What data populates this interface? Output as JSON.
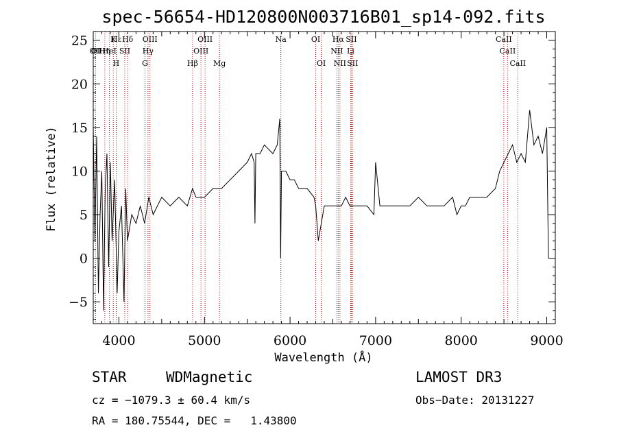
{
  "chart_data": {
    "type": "line",
    "title": "spec-56654-HD120800N003716B01_sp14-092.fits",
    "xlabel": "Wavelength (Å)",
    "ylabel": "Flux (relative)",
    "xlim": [
      3700,
      9100
    ],
    "ylim": [
      -7.5,
      26
    ],
    "x_ticks": [
      4000,
      5000,
      6000,
      7000,
      8000,
      9000
    ],
    "y_ticks": [
      -5,
      0,
      5,
      10,
      15,
      20,
      25
    ],
    "series": [
      {
        "name": "flux",
        "x": [
          3700,
          3720,
          3740,
          3760,
          3780,
          3800,
          3820,
          3840,
          3860,
          3880,
          3900,
          3920,
          3950,
          3980,
          4000,
          4030,
          4060,
          4080,
          4100,
          4150,
          4200,
          4250,
          4300,
          4350,
          4400,
          4500,
          4600,
          4700,
          4800,
          4860,
          4900,
          5000,
          5100,
          5200,
          5300,
          5400,
          5500,
          5550,
          5580,
          5590,
          5600,
          5650,
          5700,
          5800,
          5850,
          5880,
          5890,
          5900,
          5950,
          6000,
          6050,
          6100,
          6200,
          6280,
          6300,
          6330,
          6400,
          6500,
          6560,
          6600,
          6650,
          6700,
          6800,
          6900,
          6980,
          7000,
          7050,
          7100,
          7200,
          7300,
          7400,
          7500,
          7600,
          7700,
          7800,
          7900,
          7950,
          8000,
          8050,
          8100,
          8200,
          8300,
          8400,
          8450,
          8500,
          8550,
          8600,
          8650,
          8700,
          8750,
          8800,
          8850,
          8900,
          8950,
          9000,
          9020
        ],
        "y": [
          15,
          2,
          14,
          -4,
          5,
          10,
          -6,
          8,
          12,
          -1,
          11,
          2,
          9,
          -4,
          3,
          6,
          -5,
          8,
          2,
          5,
          4,
          6,
          4,
          7,
          5,
          7,
          6,
          7,
          6,
          8,
          7,
          7,
          8,
          8,
          9,
          10,
          11,
          12,
          11,
          4,
          12,
          12,
          13,
          12,
          13,
          16,
          0,
          10,
          10,
          9,
          9,
          8,
          8,
          7,
          6,
          2,
          6,
          6,
          6,
          6,
          7,
          6,
          6,
          6,
          5,
          11,
          6,
          6,
          6,
          6,
          6,
          7,
          6,
          6,
          6,
          7,
          5,
          6,
          6,
          7,
          7,
          7,
          8,
          10,
          11,
          12,
          13,
          11,
          12,
          11,
          17,
          13,
          14,
          12,
          15,
          0
        ]
      }
    ],
    "line_marks": [
      {
        "label": "Hε",
        "wavelength": 3970
      },
      {
        "label": "K",
        "wavelength": 3934
      },
      {
        "label": "Hδ",
        "wavelength": 4102
      },
      {
        "label": "OIII",
        "wavelength": 4363
      },
      {
        "label": "OIII",
        "wavelength": 5007
      },
      {
        "label": "Na",
        "wavelength": 5893
      },
      {
        "label": "OI",
        "wavelength": 6300
      },
      {
        "label": "Hα",
        "wavelength": 6563
      },
      {
        "label": "SII",
        "wavelength": 6716
      },
      {
        "label": "CaII",
        "wavelength": 8498
      },
      {
        "label": "OI",
        "wavelength": 3727
      },
      {
        "label": "HeI",
        "wavelength": 3889
      },
      {
        "label": "SII",
        "wavelength": 4068
      },
      {
        "label": "Hγ",
        "wavelength": 4340
      },
      {
        "label": "OIII",
        "wavelength": 4959
      },
      {
        "label": "NII",
        "wavelength": 6548
      },
      {
        "label": "Li",
        "wavelength": 6708
      },
      {
        "label": "CaII",
        "wavelength": 8542
      },
      {
        "label": "OII",
        "wavelength": 3727
      },
      {
        "label": "Hη",
        "wavelength": 3835
      },
      {
        "label": "H",
        "wavelength": 3968
      },
      {
        "label": "G",
        "wavelength": 4305
      },
      {
        "label": "Hβ",
        "wavelength": 4861
      },
      {
        "label": "Mg",
        "wavelength": 5175
      },
      {
        "label": "OI",
        "wavelength": 6364
      },
      {
        "label": "NII",
        "wavelength": 6583
      },
      {
        "label": "SII",
        "wavelength": 6731
      },
      {
        "label": "CaII",
        "wavelength": 8662
      }
    ]
  },
  "info": {
    "object_class": "STAR",
    "subclass": "WDMagnetic",
    "survey": "LAMOST DR3",
    "cz": "cz = −1079.3 ± 60.4 km/s",
    "obs_date": "Obs−Date: 20131227",
    "coords": "RA = 180.75544, DEC =   1.43800"
  }
}
